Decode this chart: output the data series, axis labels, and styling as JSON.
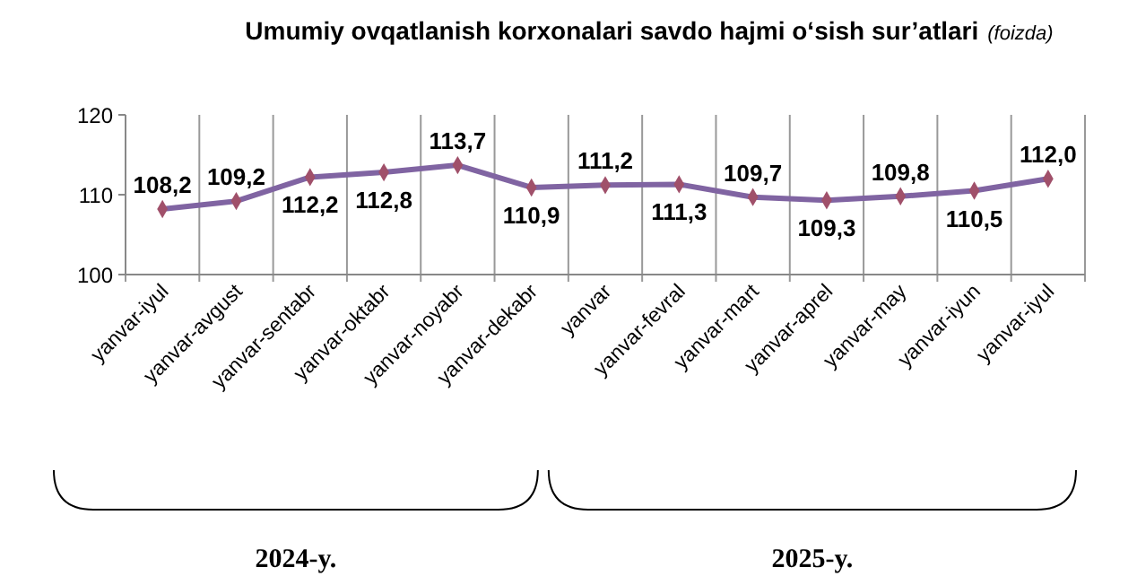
{
  "chart_data": {
    "type": "line",
    "title": "Umumiy ovqatlanish korxonalari savdo hajmi o‘sish sur’atlari",
    "subtitle": "(foizda)",
    "categories": [
      "yanvar-iyul",
      "yanvar-avgust",
      "yanvar-sentabr",
      "yanvar-oktabr",
      "yanvar-noyabr",
      "yanvar-dekabr",
      "yanvar",
      "yanvar-fevral",
      "yanvar-mart",
      "yanvar-aprel",
      "yanvar-may",
      "yanvar-iyun",
      "yanvar-iyul"
    ],
    "series": [
      {
        "color": "#8064a2",
        "values": [
          108.2,
          109.2,
          112.2,
          112.8,
          113.7,
          110.9,
          111.2,
          111.3,
          109.7,
          109.3,
          109.8,
          110.5,
          112.0
        ],
        "value_labels": [
          "108,2",
          "109,2",
          "112,2",
          "112,8",
          "113,7",
          "110,9",
          "111,2",
          "111,3",
          "109,7",
          "109,3",
          "109,8",
          "110,5",
          "112,0"
        ]
      }
    ],
    "ylim": [
      100,
      120
    ],
    "yticks": [
      100,
      110,
      120
    ],
    "grid": "x",
    "marker": "diamond",
    "annotations": [
      "2024-y.",
      "2025-y."
    ]
  }
}
